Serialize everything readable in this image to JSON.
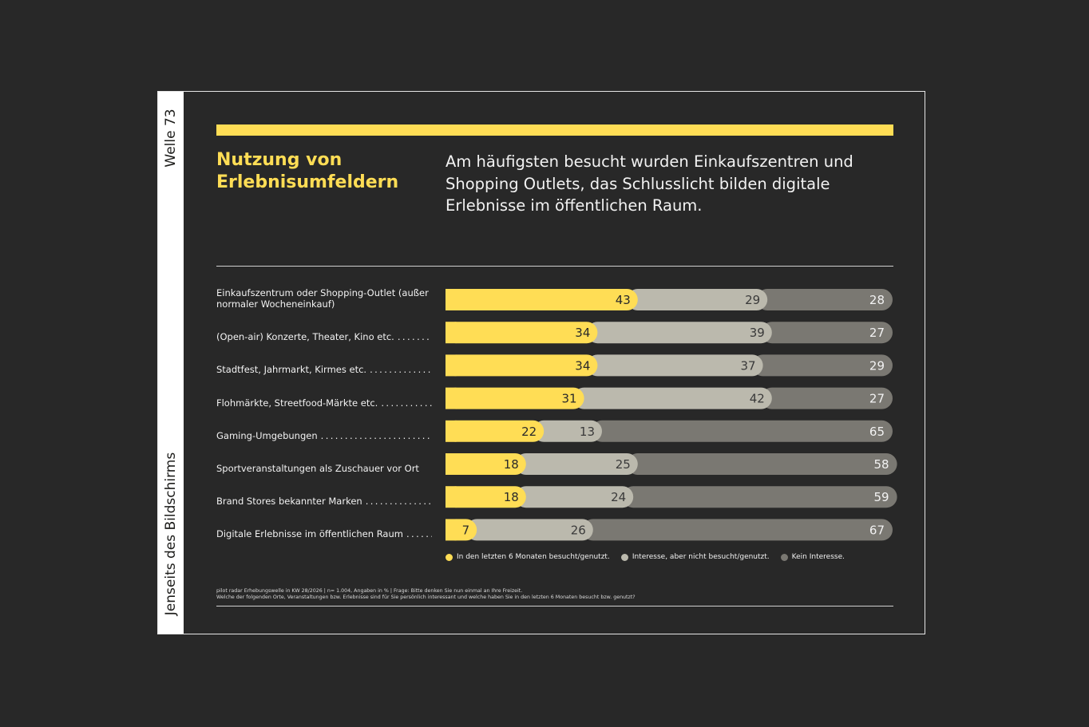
{
  "side": {
    "top_text": "Welle 73",
    "bottom_text": "Jenseits des Bildschirms"
  },
  "title": "Nutzung von Erlebnisumfeldern",
  "headline": "Am häufigsten besucht wurden Einkaufszentren und Shopping Outlets, das Schlusslicht bilden digitale Erlebnisse im öffentlichen Raum.",
  "colors": {
    "accent": "#ffdd55",
    "visited": "#ffdd55",
    "interest": "#bbb9ad",
    "no_interest": "#7a7872",
    "background": "#282828"
  },
  "rows": [
    {
      "label": "Einkaufszentrum oder Shopping-Outlet (außer normaler Wocheneinkauf)",
      "dotted": true
    },
    {
      "label": "(Open-air) Konzerte, Theater, Kino etc.",
      "dotted": true
    },
    {
      "label": "Stadtfest, Jahrmarkt, Kirmes etc.",
      "dotted": true
    },
    {
      "label": "Flohmärkte, Streetfood-Märkte etc.",
      "dotted": true
    },
    {
      "label": "Gaming-Umgebungen",
      "dotted": true
    },
    {
      "label": "Sportveranstaltungen als Zuschauer vor Ort",
      "dotted": false
    },
    {
      "label": "Brand Stores bekannter Marken",
      "dotted": true
    },
    {
      "label": "Digitale Erlebnisse im öffentlichen Raum",
      "dotted": true
    }
  ],
  "chart_data": {
    "type": "bar",
    "orientation": "horizontal",
    "stacked": true,
    "unit": "%",
    "categories": [
      "Einkaufszentrum oder Shopping-Outlet (außer normaler Wocheneinkauf)",
      "(Open-air) Konzerte, Theater, Kino etc.",
      "Stadtfest, Jahrmarkt, Kirmes etc.",
      "Flohmärkte, Streetfood-Märkte etc.",
      "Gaming-Umgebungen",
      "Sportveranstaltungen als Zuschauer vor Ort",
      "Brand Stores bekannter Marken",
      "Digitale Erlebnisse im öffentlichen Raum"
    ],
    "series": [
      {
        "name": "In den letzten 6 Monaten besucht/genutzt.",
        "color": "#ffdd55",
        "values": [
          43,
          34,
          34,
          31,
          22,
          18,
          18,
          7
        ]
      },
      {
        "name": "Interesse, aber nicht besucht/genutzt.",
        "color": "#bbb9ad",
        "values": [
          29,
          39,
          37,
          42,
          13,
          25,
          24,
          26
        ]
      },
      {
        "name": "Kein Interesse.",
        "color": "#7a7872",
        "values": [
          28,
          27,
          29,
          27,
          65,
          58,
          59,
          67
        ]
      }
    ],
    "xlim": [
      0,
      100
    ],
    "grid": false,
    "legend_position": "bottom"
  },
  "footnote": {
    "line1": "pilot radar Erhebungswelle in KW 28/2026 | n= 1.004, Angaben in % | Frage: Bitte denken Sie nun einmal an Ihre Freizeit.",
    "line2": "Welche der folgenden Orte, Veranstaltungen bzw. Erlebnisse sind für Sie persönlich interessant und welche haben Sie in den letzten 6 Monaten besucht bzw. genutzt?"
  }
}
